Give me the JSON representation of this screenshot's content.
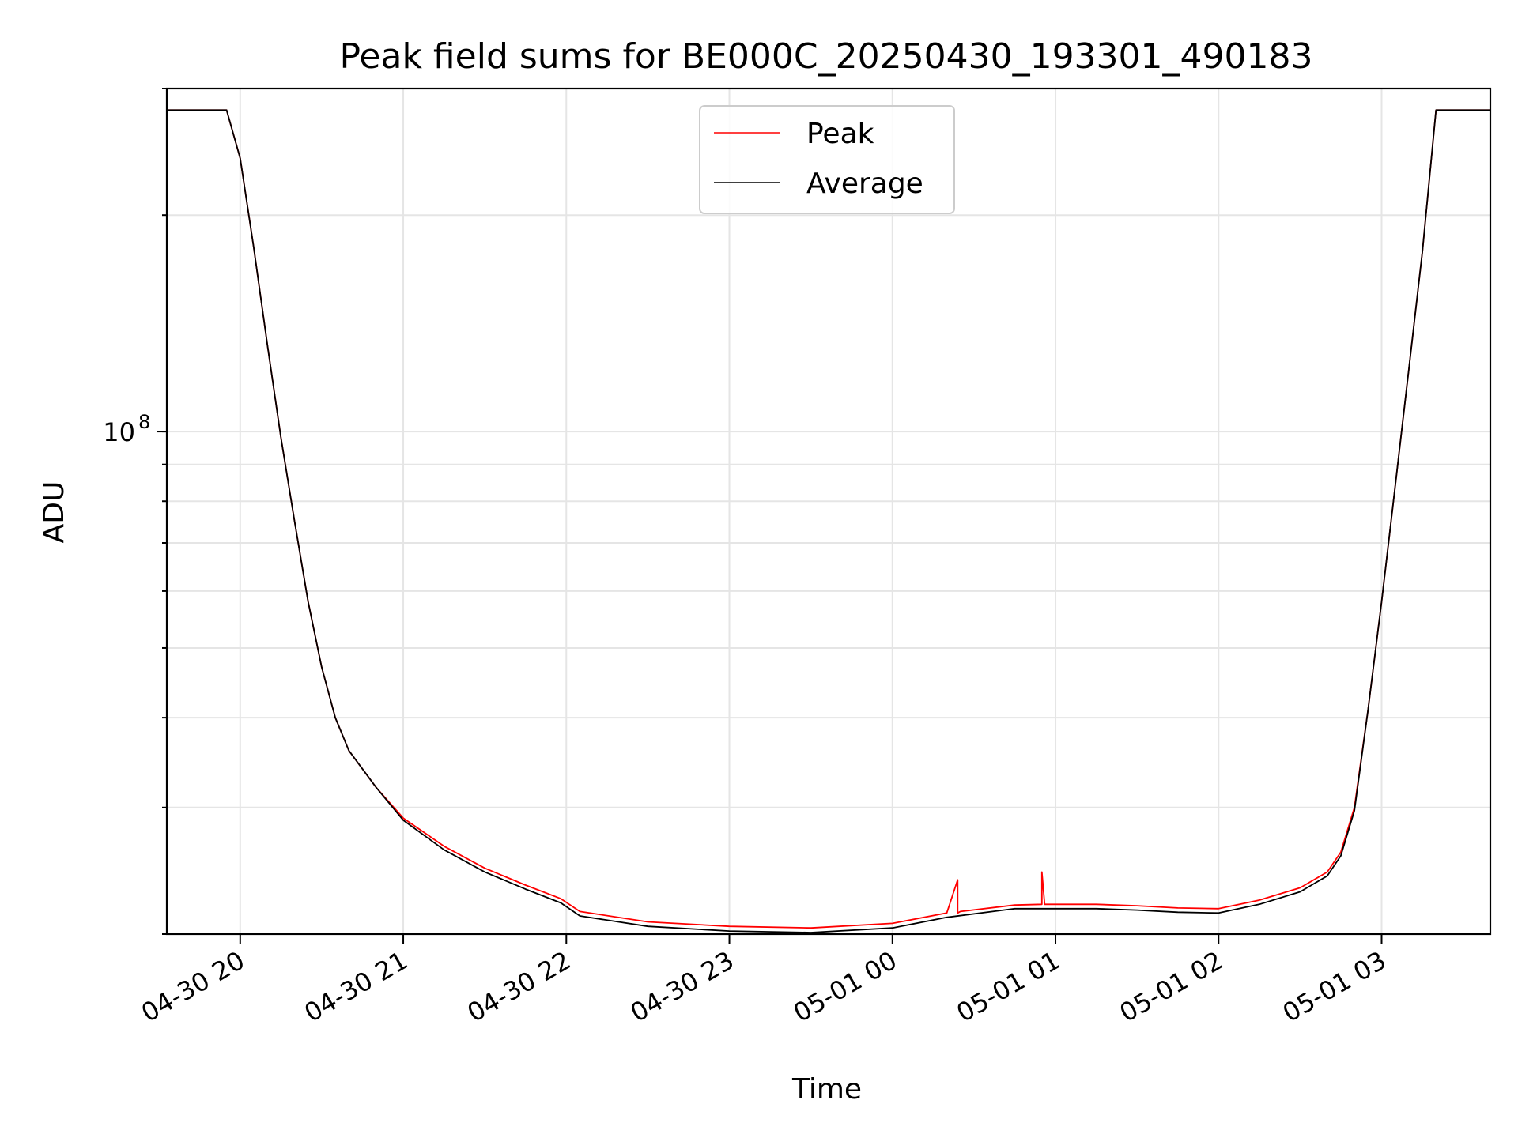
{
  "chart_data": {
    "type": "line",
    "title": "Peak field sums for BE000C_20250430_193301_490183",
    "xlabel": "Time",
    "ylabel": "ADU",
    "yscale": "log",
    "xlim": [
      "2025-04-30 19:33",
      "2025-05-01 03:40"
    ],
    "ylim": [
      20000000,
      300000000
    ],
    "x_ticks": [
      "04-30 20",
      "04-30 21",
      "04-30 22",
      "04-30 23",
      "05-01 00",
      "05-01 01",
      "05-01 02",
      "05-01 03"
    ],
    "y_ticks": [
      {
        "value": 100000000,
        "base": "10",
        "exp": "8"
      }
    ],
    "grid": true,
    "legend_position": "top-center",
    "series": [
      {
        "name": "Peak",
        "color": "#ff0000",
        "x": [
          "2025-04-30 19:33",
          "2025-04-30 19:40",
          "2025-04-30 19:55",
          "2025-04-30 20:00",
          "2025-04-30 20:05",
          "2025-04-30 20:10",
          "2025-04-30 20:15",
          "2025-04-30 20:20",
          "2025-04-30 20:25",
          "2025-04-30 20:30",
          "2025-04-30 20:35",
          "2025-04-30 20:40",
          "2025-04-30 20:50",
          "2025-04-30 21:00",
          "2025-04-30 21:15",
          "2025-04-30 21:30",
          "2025-04-30 21:45",
          "2025-04-30 21:58",
          "2025-04-30 22:05",
          "2025-04-30 22:30",
          "2025-04-30 23:00",
          "2025-04-30 23:30",
          "2025-05-01 00:00",
          "2025-05-01 00:20",
          "2025-05-01 00:24",
          "2025-05-01 00:24",
          "2025-05-01 00:25",
          "2025-05-01 00:45",
          "2025-05-01 00:55",
          "2025-05-01 00:55",
          "2025-05-01 00:56",
          "2025-05-01 01:15",
          "2025-05-01 01:30",
          "2025-05-01 01:45",
          "2025-05-01 02:00",
          "2025-05-01 02:15",
          "2025-05-01 02:30",
          "2025-05-01 02:40",
          "2025-05-01 02:45",
          "2025-05-01 02:50",
          "2025-05-01 02:55",
          "2025-05-01 03:00",
          "2025-05-01 03:05",
          "2025-05-01 03:10",
          "2025-05-01 03:15",
          "2025-05-01 03:20",
          "2025-05-01 03:40"
        ],
        "y": [
          280000000,
          280000000,
          280000000,
          240000000,
          180000000,
          132000000,
          98000000,
          75000000,
          58000000,
          47000000,
          40000000,
          36000000,
          32000000,
          29000000,
          26500000,
          24700000,
          23400000,
          22400000,
          21500000,
          20800000,
          20500000,
          20400000,
          20700000,
          21400000,
          23800000,
          21400000,
          21500000,
          21950000,
          22000000,
          24400000,
          22000000,
          22000000,
          21900000,
          21750000,
          21700000,
          22300000,
          23200000,
          24400000,
          26000000,
          30000000,
          41000000,
          58000000,
          84000000,
          122000000,
          178000000,
          280000000,
          280000000
        ]
      },
      {
        "name": "Average",
        "color": "#000000",
        "x": [
          "2025-04-30 19:33",
          "2025-04-30 19:40",
          "2025-04-30 19:55",
          "2025-04-30 20:00",
          "2025-04-30 20:05",
          "2025-04-30 20:10",
          "2025-04-30 20:15",
          "2025-04-30 20:20",
          "2025-04-30 20:25",
          "2025-04-30 20:30",
          "2025-04-30 20:35",
          "2025-04-30 20:40",
          "2025-04-30 20:50",
          "2025-04-30 21:00",
          "2025-04-30 21:15",
          "2025-04-30 21:30",
          "2025-04-30 21:45",
          "2025-04-30 21:58",
          "2025-04-30 22:05",
          "2025-04-30 22:30",
          "2025-04-30 23:00",
          "2025-04-30 23:30",
          "2025-05-01 00:00",
          "2025-05-01 00:20",
          "2025-05-01 00:45",
          "2025-05-01 01:15",
          "2025-05-01 01:30",
          "2025-05-01 01:45",
          "2025-05-01 02:00",
          "2025-05-01 02:15",
          "2025-05-01 02:30",
          "2025-05-01 02:40",
          "2025-05-01 02:45",
          "2025-05-01 02:50",
          "2025-05-01 02:55",
          "2025-05-01 03:00",
          "2025-05-01 03:05",
          "2025-05-01 03:10",
          "2025-05-01 03:15",
          "2025-05-01 03:20",
          "2025-05-01 03:40"
        ],
        "y": [
          280000000,
          280000000,
          280000000,
          240000000,
          180000000,
          132000000,
          98000000,
          75000000,
          58000000,
          47000000,
          40000000,
          36000000,
          32000000,
          28800000,
          26200000,
          24400000,
          23100000,
          22100000,
          21200000,
          20500000,
          20200000,
          20100000,
          20400000,
          21100000,
          21700000,
          21700000,
          21600000,
          21450000,
          21400000,
          22000000,
          22900000,
          24100000,
          25700000,
          29700000,
          41000000,
          58000000,
          84000000,
          122000000,
          178000000,
          280000000,
          280000000
        ]
      }
    ]
  }
}
